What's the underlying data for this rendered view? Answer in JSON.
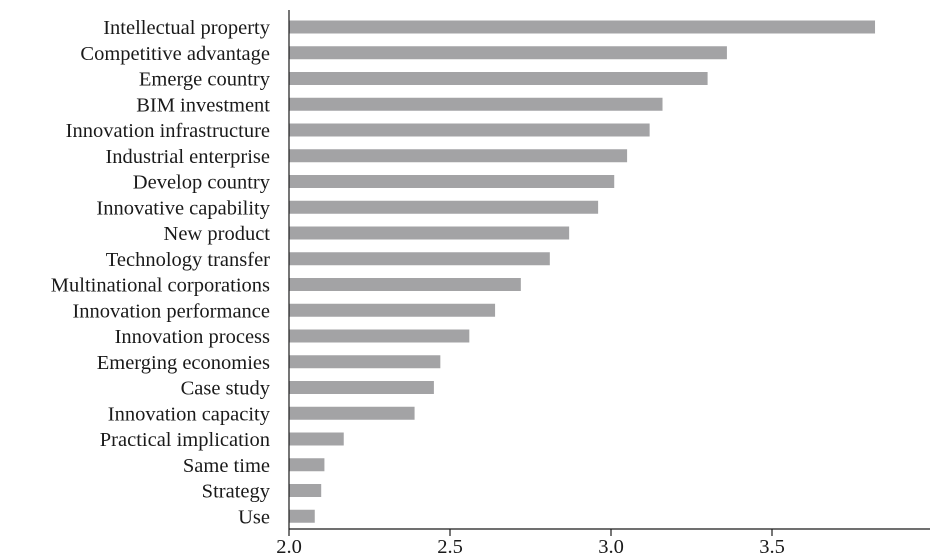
{
  "chart_data": {
    "type": "bar",
    "orientation": "horizontal",
    "title": "",
    "xlabel": "",
    "ylabel": "",
    "categories": [
      "Intellectual property",
      "Competitive advantage",
      "Emerge country",
      "BIM investment",
      "Innovation infrastructure",
      "Industrial enterprise",
      "Develop country",
      "Innovative capability",
      "New product",
      "Technology transfer",
      "Multinational corporations",
      "Innovation performance",
      "Innovation process",
      "Emerging economies",
      "Case study",
      "Innovation capacity",
      "Practical implication",
      "Same time",
      "Strategy",
      "Use"
    ],
    "values": [
      3.82,
      3.36,
      3.3,
      3.16,
      3.12,
      3.05,
      3.01,
      2.96,
      2.87,
      2.81,
      2.72,
      2.64,
      2.56,
      2.47,
      2.45,
      2.39,
      2.17,
      2.11,
      2.1,
      2.08
    ],
    "xlim": [
      2.0,
      3.91
    ],
    "xticks": [
      2.0,
      2.5,
      3.0,
      3.5
    ],
    "xtick_labels": [
      "2.0",
      "2.5",
      "3.0",
      "3.5"
    ],
    "grid": false,
    "legend": "none",
    "bar_color": "#a3a3a5",
    "axis_color": "#1a1a1a",
    "text_color": "#1a1a1a"
  }
}
